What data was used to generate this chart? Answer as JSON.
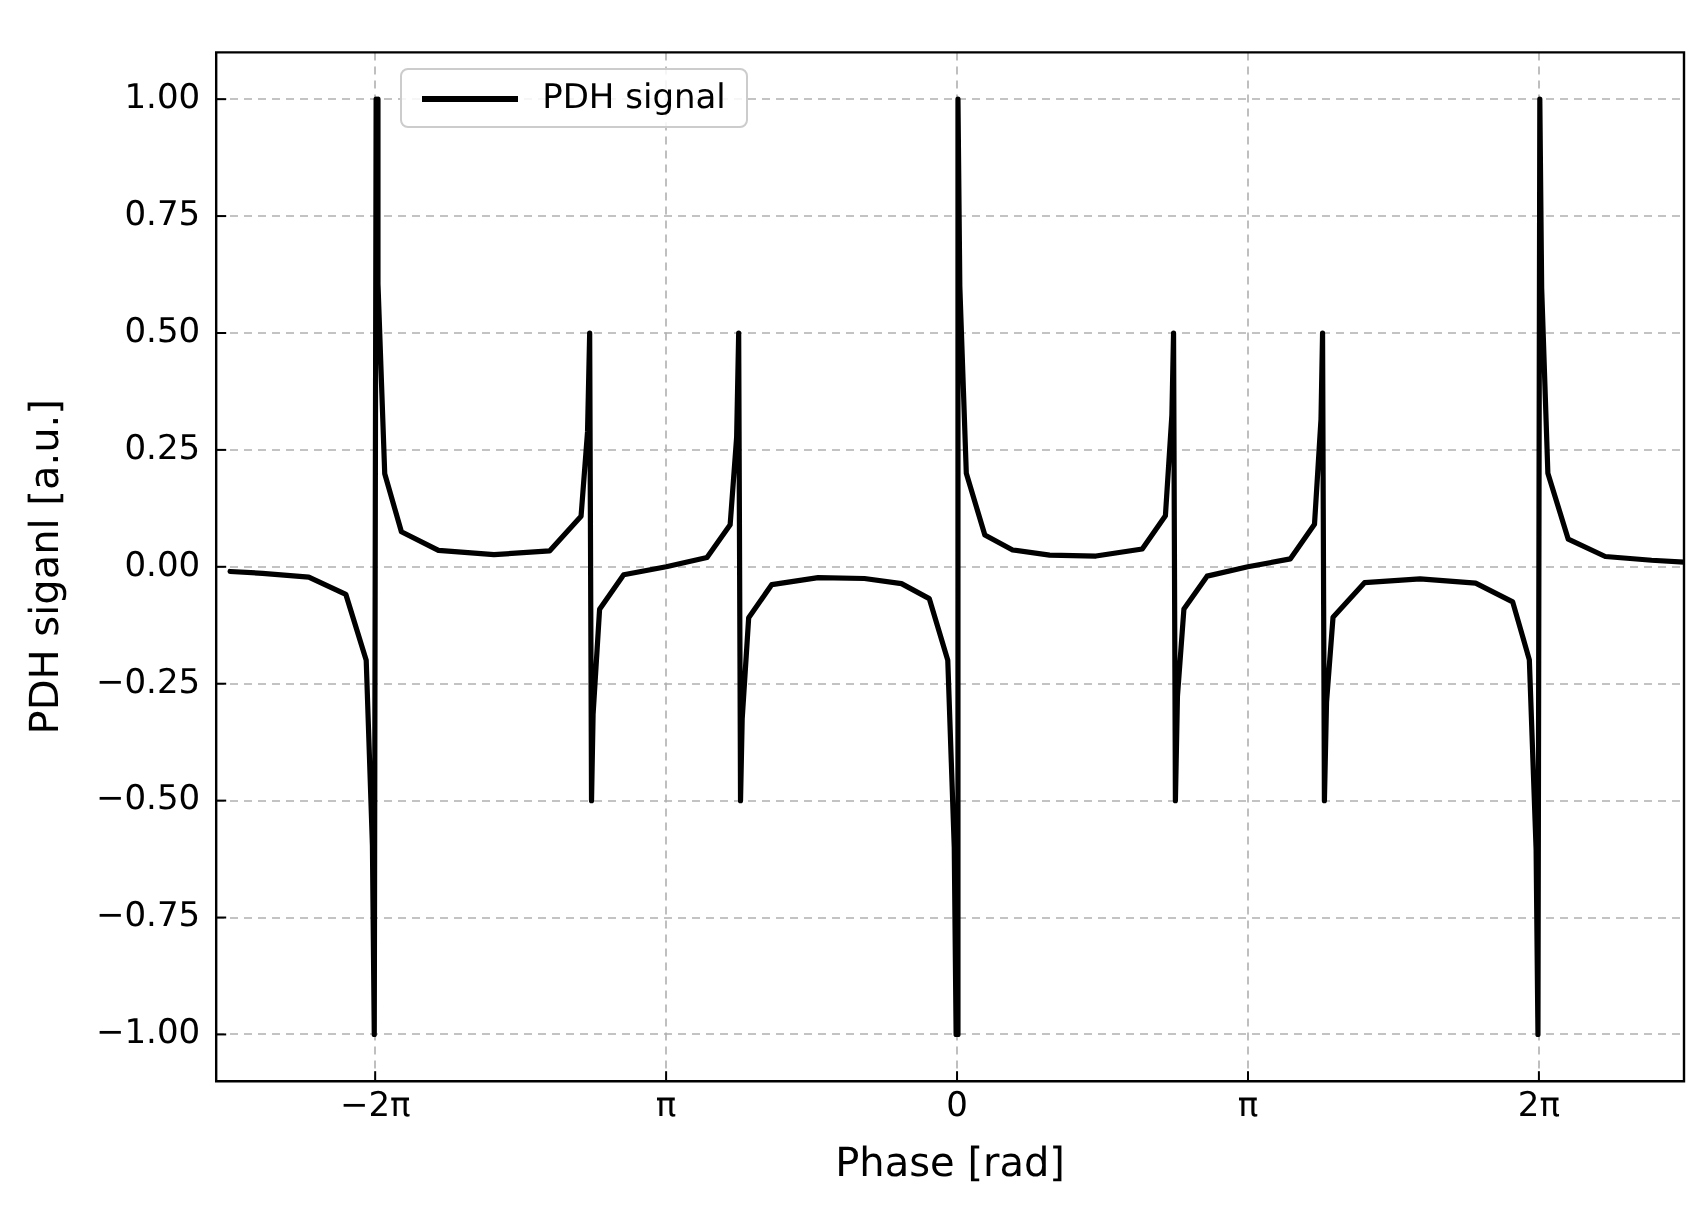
{
  "chart_data": {
    "type": "line",
    "xlabel": "Phase [rad]",
    "ylabel": "PDH siganl [a.u.]",
    "xlim": [
      -8,
      7.85
    ],
    "xticks": [
      {
        "value": -6.2832,
        "label": "−2π"
      },
      {
        "value": -3.1416,
        "label": "π"
      },
      {
        "value": 0,
        "label": "0"
      },
      {
        "value": 3.1416,
        "label": "π"
      },
      {
        "value": 6.2832,
        "label": "2π"
      }
    ],
    "ylim": [
      -1.1,
      1.1
    ],
    "yticks": [
      {
        "value": -1,
        "label": "−1.00"
      },
      {
        "value": -0.75,
        "label": "−0.75"
      },
      {
        "value": -0.5,
        "label": "−0.50"
      },
      {
        "value": -0.25,
        "label": "−0.25"
      },
      {
        "value": 0,
        "label": "0.00"
      },
      {
        "value": 0.25,
        "label": "0.25"
      },
      {
        "value": 0.5,
        "label": "0.50"
      },
      {
        "value": 0.75,
        "label": "0.75"
      },
      {
        "value": 1,
        "label": "1.00"
      }
    ],
    "grid": true,
    "legend": "top left",
    "marker": "none",
    "line_style": "solid",
    "x": [
      -7.85,
      -7.5,
      -7.0,
      -6.6,
      -6.38,
      -6.313,
      -6.293,
      -6.273,
      -6.253,
      -6.18,
      -6.0,
      -5.6,
      -5.0,
      -4.4,
      -4.06,
      -3.99,
      -3.967,
      -3.947,
      -3.93,
      -3.86,
      -3.6,
      -3.14,
      -2.7,
      -2.45,
      -2.38,
      -2.358,
      -2.338,
      -2.32,
      -2.25,
      -2.0,
      -1.5,
      -1.0,
      -0.6,
      -0.3,
      -0.1,
      -0.03,
      -0.01,
      0.01,
      0.03,
      0.1,
      0.3,
      0.6,
      1.0,
      1.5,
      2.0,
      2.25,
      2.32,
      2.338,
      2.358,
      2.38,
      2.45,
      2.7,
      3.14,
      3.6,
      3.86,
      3.93,
      3.947,
      3.967,
      3.99,
      4.06,
      4.4,
      5.0,
      5.6,
      6.0,
      6.18,
      6.253,
      6.273,
      6.293,
      6.313,
      6.38,
      6.6,
      7.0,
      7.5,
      7.85
    ],
    "series": [
      {
        "name": "PDH signal",
        "color": "#000000",
        "values": [
          -0.01,
          -0.014,
          -0.022,
          -0.059,
          -0.2,
          -0.596,
          -1,
          1,
          0.605,
          0.199,
          0.075,
          0.035,
          0.026,
          0.034,
          0.108,
          0.289,
          0.5,
          -0.5,
          -0.315,
          -0.091,
          -0.017,
          0,
          0.02,
          0.09,
          0.277,
          0.5,
          -0.5,
          -0.325,
          -0.109,
          -0.038,
          -0.023,
          -0.025,
          -0.036,
          -0.068,
          -0.2,
          -0.6,
          -1,
          1,
          0.6,
          0.2,
          0.068,
          0.036,
          0.025,
          0.023,
          0.038,
          0.109,
          0.325,
          0.5,
          -0.5,
          -0.277,
          -0.09,
          -0.02,
          0,
          0.017,
          0.091,
          0.315,
          0.5,
          -0.5,
          -0.289,
          -0.108,
          -0.034,
          -0.026,
          -0.035,
          -0.075,
          -0.199,
          -0.605,
          -1,
          1,
          0.596,
          0.2,
          0.059,
          0.022,
          0.014,
          0.01
        ]
      }
    ]
  }
}
